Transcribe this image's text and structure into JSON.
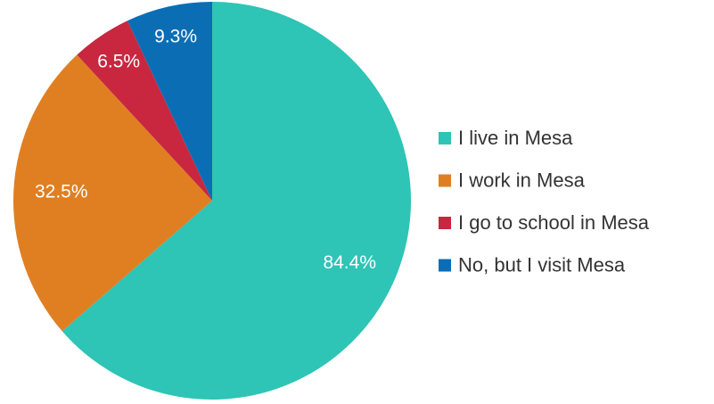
{
  "chart_data": {
    "type": "pie",
    "categories": [
      "I live in Mesa",
      "I work in Mesa",
      "I go to school in Mesa",
      "No, but I visit Mesa"
    ],
    "values": [
      84.4,
      32.5,
      6.5,
      9.3
    ],
    "value_labels": [
      "84.4%",
      "32.5%",
      "6.5%",
      "9.3%"
    ],
    "colors": [
      "#2ec4b6",
      "#e07f22",
      "#c8273f",
      "#0b6eb5"
    ],
    "legend": "right"
  }
}
